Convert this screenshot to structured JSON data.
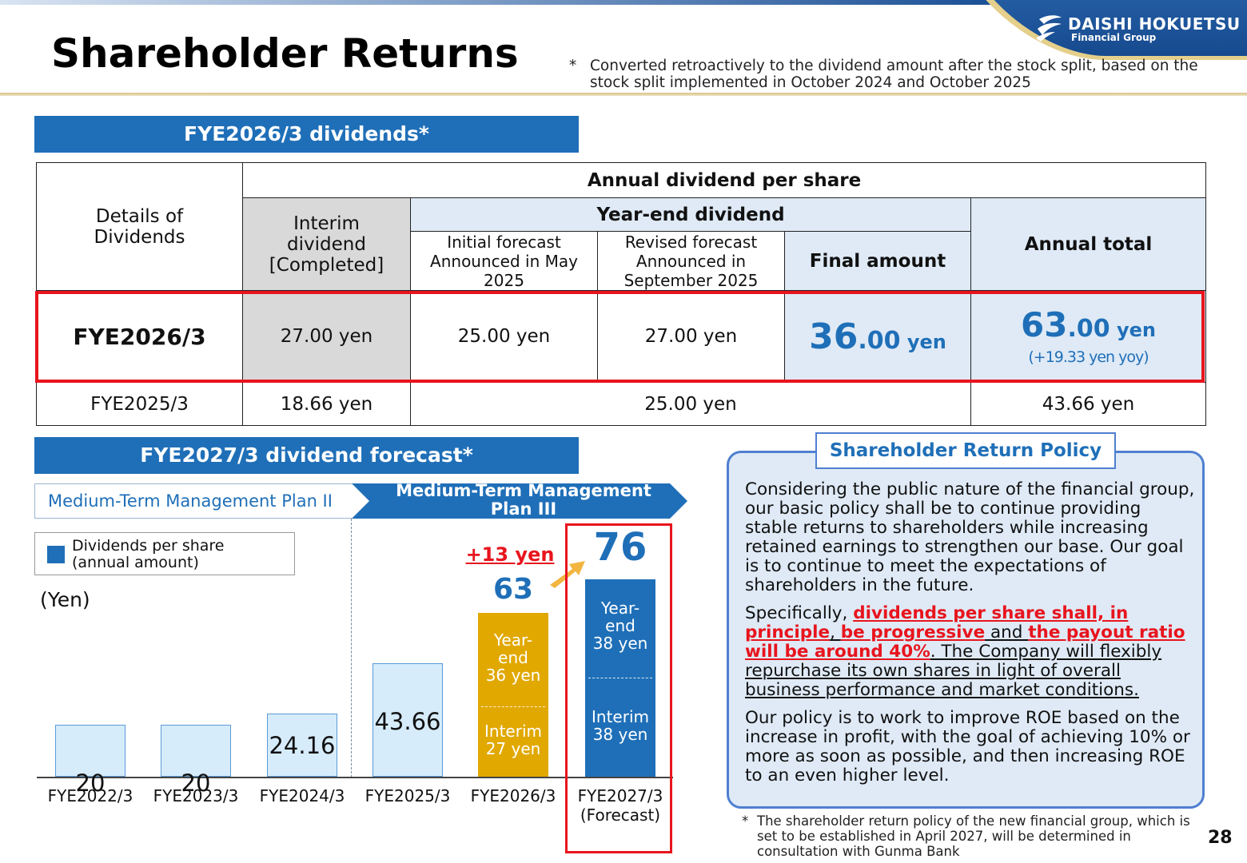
{
  "header": {
    "title": "Shareholder Returns",
    "note_star": "*",
    "note": "Converted retroactively to the dividend amount after the stock split, based on the stock split implemented in October 2024 and October 2025",
    "logo_name": "DAISHI HOKUETSU",
    "logo_sub": "Financial Group"
  },
  "section1": {
    "title": "FYE2026/3 dividends*"
  },
  "table": {
    "col_details": "Details of Dividends",
    "annual_header": "Annual dividend per share",
    "interim_header": "Interim dividend [Completed]",
    "yearend_header": "Year-end dividend",
    "initial_forecast": "Initial forecast Announced in May 2025",
    "revised_forecast": "Revised forecast Announced in September 2025",
    "final_amount": "Final amount",
    "annual_total": "Annual total",
    "row1": {
      "label": "FYE2026/3",
      "interim": "27.00 yen",
      "initial": "25.00 yen",
      "revised": "27.00 yen",
      "final_int": "36",
      "final_dec": ".00",
      "final_unit": " yen",
      "total_int": "63",
      "total_dec": ".00",
      "total_unit": " yen",
      "total_yoy": "(+19.33 yen yoy)"
    },
    "row2": {
      "label": "FYE2025/3",
      "interim": "18.66 yen",
      "yearend": "25.00 yen",
      "total": "43.66 yen"
    }
  },
  "section2": {
    "title": "FYE2027/3 dividend forecast*"
  },
  "plans": {
    "plan2": "Medium-Term Management Plan II",
    "plan3": "Medium-Term Management Plan III"
  },
  "legend": {
    "label": "Dividends per share (annual amount)",
    "color": "#1f6fb8"
  },
  "chart_data": {
    "type": "bar",
    "ylabel": "(Yen)",
    "categories": [
      "FYE2022/3",
      "FYE2023/3",
      "FYE2024/3",
      "FYE2025/3",
      "FYE2026/3",
      "FYE2027/3"
    ],
    "category_sub": [
      "",
      "",
      "",
      "",
      "",
      "(Forecast)"
    ],
    "values": [
      20,
      20,
      24.16,
      43.66,
      63,
      76
    ],
    "value_labels": [
      "20",
      "20",
      "24.16",
      "43.66",
      "63",
      "76"
    ],
    "stacked": [
      {
        "category": "FYE2026/3",
        "interim": 27,
        "yearend": 36,
        "interim_label": "Interim 27 yen",
        "yearend_label": "Year-end 36 yen",
        "color": "#e1a800"
      },
      {
        "category": "FYE2027/3",
        "interim": 38,
        "yearend": 38,
        "interim_label": "Interim 38 yen",
        "yearend_label": "Year-end 38 yen",
        "color": "#1f6fb8"
      }
    ],
    "annotation": "+13 yen",
    "colors": {
      "light": "#d6ecfb",
      "gold": "#e1a800",
      "blue": "#1f6fb8",
      "highlight": "#e8141d"
    }
  },
  "policy": {
    "title": "Shareholder Return Policy",
    "p1": "Considering the public nature of the financial group, our basic policy shall be to continue providing stable returns to shareholders while increasing retained earnings to strengthen our base. Our goal is to continue to meet the expectations of shareholders in the future.",
    "p2_a": "Specifically, ",
    "p2_b": "dividends per share shall, in principle",
    "p2_c": ", ",
    "p2_d": "be progressive",
    "p2_e": " and ",
    "p2_f": "the payout ratio will be around 40%",
    "p2_g": ". The Company will flexibly repurchase its own shares in light of overall business performance and market conditions.",
    "p3": "Our policy is to work to improve ROE based on the increase in profit, with the goal of achieving 10% or more as soon as possible, and then increasing ROE to an even higher level."
  },
  "footnote": {
    "star": "*",
    "text": "The shareholder return policy of the new financial group, which is set to be established in April 2027, will be determined in consultation with Gunma Bank"
  },
  "page_number": "28"
}
